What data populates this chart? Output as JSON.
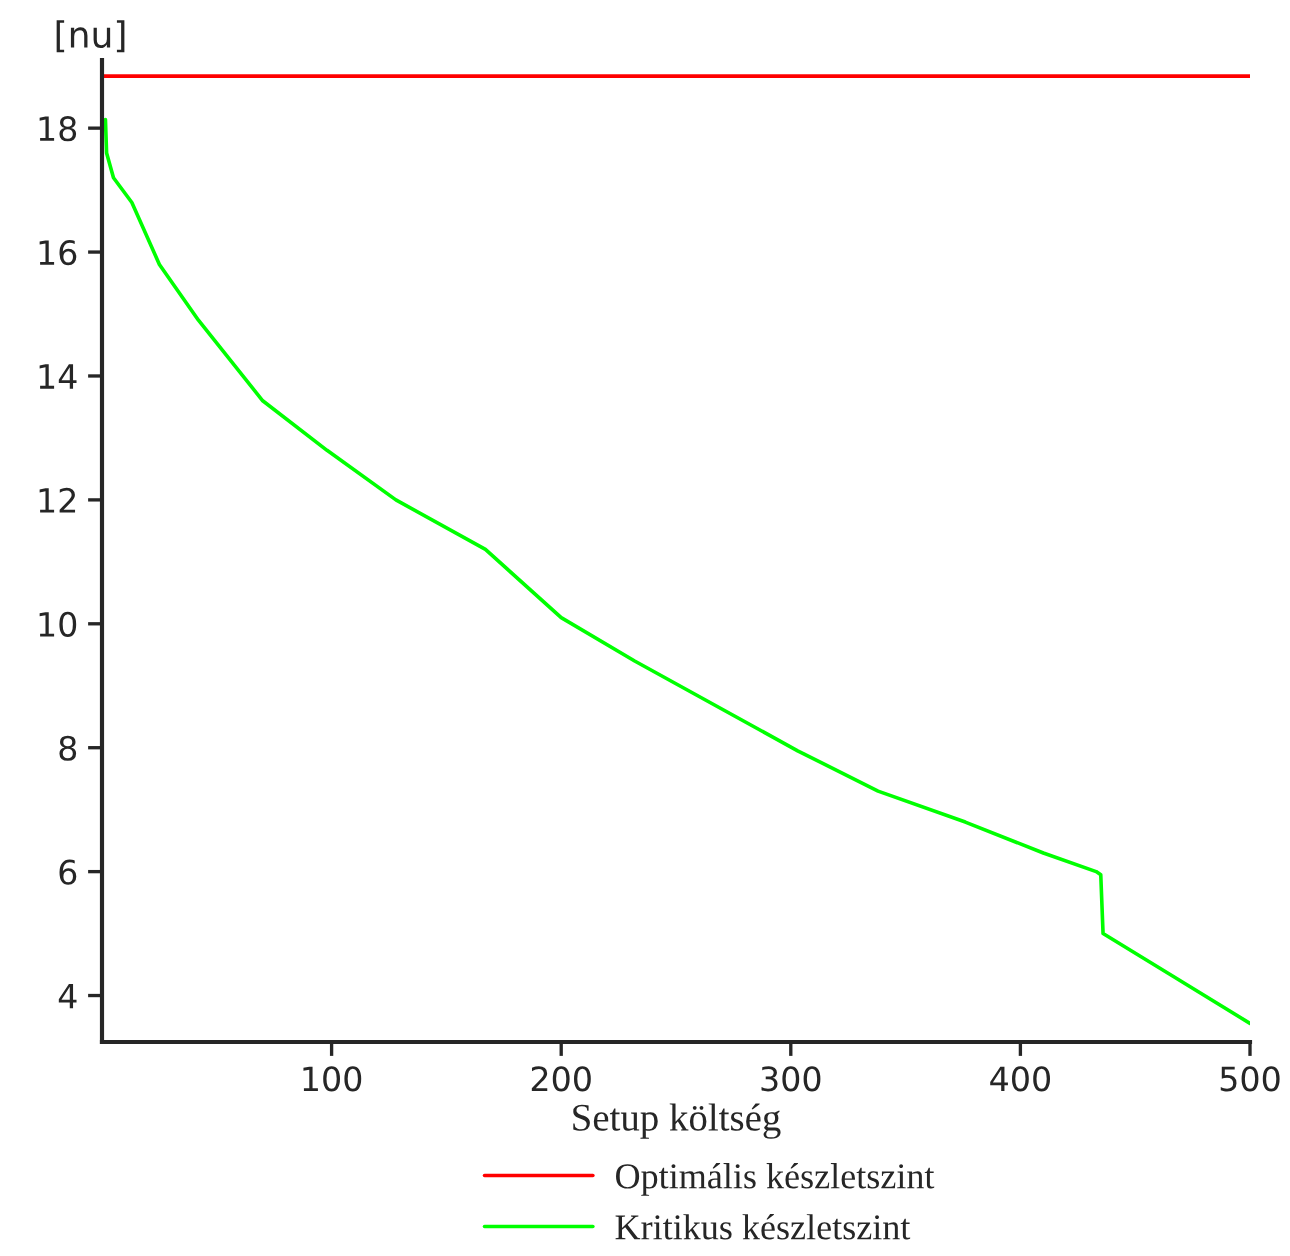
{
  "chart_data": {
    "type": "line",
    "xlabel": "Setup költség",
    "ylabel": "[nu]",
    "xlim": [
      0,
      500
    ],
    "ylim": [
      3.25,
      19.1
    ],
    "xticks": [
      100,
      200,
      300,
      400,
      500
    ],
    "yticks": [
      4,
      6,
      8,
      10,
      12,
      14,
      16,
      18
    ],
    "grid": false,
    "legend": "bottom",
    "marker": "none",
    "line_style": "solid",
    "series": [
      {
        "name": "Optimális készletszint",
        "color": "#ff0000",
        "x": [
          0,
          500
        ],
        "values": [
          18.84,
          18.84
        ]
      },
      {
        "name": "Kritikus készletszint",
        "color": "#00ff00",
        "x": [
          1.5,
          2,
          5,
          13,
          25,
          42,
          70,
          98,
          128,
          167,
          200,
          232,
          303,
          338,
          376,
          410,
          433,
          435,
          436,
          467,
          500
        ],
        "values": [
          18.14,
          17.6,
          17.2,
          16.8,
          15.8,
          14.9,
          13.6,
          12.8,
          12.0,
          11.2,
          10.1,
          9.4,
          7.95,
          7.3,
          6.8,
          6.3,
          6.0,
          5.95,
          5.0,
          4.3,
          3.55
        ]
      }
    ]
  }
}
